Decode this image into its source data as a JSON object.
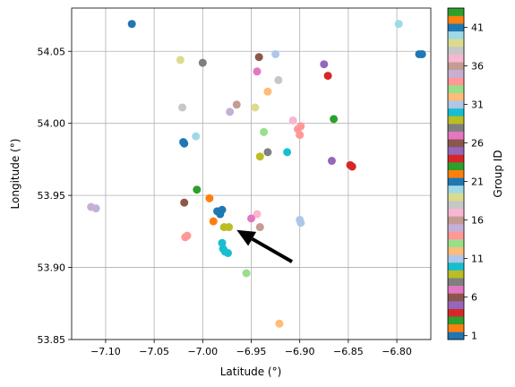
{
  "chart_data": {
    "type": "scatter",
    "title": "",
    "xlabel": "Latitude (°)",
    "ylabel": "Longitude (°)",
    "xlim": [
      -7.135,
      -6.765
    ],
    "ylim": [
      53.85,
      54.08
    ],
    "xticks": [
      -7.1,
      -7.05,
      -7.0,
      -6.95,
      -6.9,
      -6.85,
      -6.8
    ],
    "xtick_labels": [
      "−7.10",
      "−7.05",
      "−7.00",
      "−6.95",
      "−6.90",
      "−6.85",
      "−6.80"
    ],
    "yticks": [
      53.85,
      53.9,
      53.95,
      54.0,
      54.05
    ],
    "ytick_labels": [
      "53.85",
      "53.90",
      "53.95",
      "54.00",
      "54.05"
    ],
    "grid": true,
    "colorbar": {
      "label": "Group ID",
      "min": 0.5,
      "max": 43.5,
      "ticks": [
        1,
        6,
        11,
        16,
        21,
        26,
        31,
        36,
        41
      ],
      "tick_labels": [
        "1",
        "6",
        "11",
        "16",
        "21",
        "26",
        "31",
        "36",
        "41"
      ],
      "colors": [
        "#1f77b4",
        "#ff7f0e",
        "#2ca02c",
        "#d62728",
        "#9467bd",
        "#8c564b",
        "#e377c2",
        "#7f7f7f",
        "#bcbd22",
        "#17becf",
        "#aec7e8",
        "#ffbb78",
        "#98df8a",
        "#ff9896",
        "#c5b0d5",
        "#c49c94",
        "#f7b6d2",
        "#c7c7c7",
        "#dbdb8d",
        "#9edae5",
        "#1f77b4",
        "#ff7f0e",
        "#2ca02c",
        "#d62728",
        "#9467bd",
        "#8c564b",
        "#e377c2",
        "#7f7f7f",
        "#bcbd22",
        "#17becf",
        "#aec7e8",
        "#ffbb78",
        "#98df8a",
        "#ff9896",
        "#c5b0d5",
        "#c49c94",
        "#f7b6d2",
        "#c7c7c7",
        "#dbdb8d",
        "#9edae5",
        "#1f77b4",
        "#ff7f0e",
        "#2ca02c"
      ]
    },
    "arrow": {
      "from": [
        -6.908,
        53.904
      ],
      "to": [
        -6.965,
        53.926
      ],
      "color": "#000000"
    },
    "points": [
      {
        "x": -7.073,
        "y": 54.069,
        "c": "#1f77b4"
      },
      {
        "x": -6.798,
        "y": 54.069,
        "c": "#9edae5"
      },
      {
        "x": -6.777,
        "y": 54.048,
        "c": "#1f77b4"
      },
      {
        "x": -6.774,
        "y": 54.048,
        "c": "#1f77b4"
      },
      {
        "x": -7.023,
        "y": 54.044,
        "c": "#dbdb8d"
      },
      {
        "x": -7.0,
        "y": 54.042,
        "c": "#7f7f7f"
      },
      {
        "x": -6.942,
        "y": 54.046,
        "c": "#8c564b"
      },
      {
        "x": -6.925,
        "y": 54.048,
        "c": "#aec7e8"
      },
      {
        "x": -6.944,
        "y": 54.036,
        "c": "#e377c2"
      },
      {
        "x": -6.875,
        "y": 54.041,
        "c": "#9467bd"
      },
      {
        "x": -6.871,
        "y": 54.033,
        "c": "#d62728"
      },
      {
        "x": -6.922,
        "y": 54.03,
        "c": "#c7c7c7"
      },
      {
        "x": -6.933,
        "y": 54.022,
        "c": "#ffbb78"
      },
      {
        "x": -7.021,
        "y": 54.011,
        "c": "#c7c7c7"
      },
      {
        "x": -6.965,
        "y": 54.013,
        "c": "#c49c94"
      },
      {
        "x": -6.972,
        "y": 54.008,
        "c": "#c5b0d5"
      },
      {
        "x": -6.946,
        "y": 54.011,
        "c": "#dbdb8d"
      },
      {
        "x": -6.865,
        "y": 54.003,
        "c": "#2ca02c"
      },
      {
        "x": -6.907,
        "y": 54.002,
        "c": "#f7b6d2"
      },
      {
        "x": -6.899,
        "y": 53.998,
        "c": "#ff9896"
      },
      {
        "x": -6.902,
        "y": 53.996,
        "c": "#ff9896"
      },
      {
        "x": -6.9,
        "y": 53.992,
        "c": "#ff9896"
      },
      {
        "x": -6.937,
        "y": 53.994,
        "c": "#98df8a"
      },
      {
        "x": -7.007,
        "y": 53.991,
        "c": "#9edae5"
      },
      {
        "x": -7.02,
        "y": 53.987,
        "c": "#1f77b4"
      },
      {
        "x": -7.019,
        "y": 53.986,
        "c": "#1f77b4"
      },
      {
        "x": -6.933,
        "y": 53.98,
        "c": "#7f7f7f"
      },
      {
        "x": -6.913,
        "y": 53.98,
        "c": "#17becf"
      },
      {
        "x": -6.941,
        "y": 53.977,
        "c": "#bcbd22"
      },
      {
        "x": -6.867,
        "y": 53.974,
        "c": "#9467bd"
      },
      {
        "x": -6.848,
        "y": 53.971,
        "c": "#d62728"
      },
      {
        "x": -6.846,
        "y": 53.97,
        "c": "#d62728"
      },
      {
        "x": -7.006,
        "y": 53.954,
        "c": "#2ca02c"
      },
      {
        "x": -6.993,
        "y": 53.948,
        "c": "#ff7f0e"
      },
      {
        "x": -7.019,
        "y": 53.945,
        "c": "#8c564b"
      },
      {
        "x": -7.115,
        "y": 53.942,
        "c": "#c5b0d5"
      },
      {
        "x": -7.11,
        "y": 53.941,
        "c": "#c5b0d5"
      },
      {
        "x": -6.985,
        "y": 53.939,
        "c": "#1f77b4"
      },
      {
        "x": -6.98,
        "y": 53.94,
        "c": "#1f77b4"
      },
      {
        "x": -6.982,
        "y": 53.937,
        "c": "#1f77b4"
      },
      {
        "x": -6.944,
        "y": 53.937,
        "c": "#f7b6d2"
      },
      {
        "x": -6.95,
        "y": 53.934,
        "c": "#e377c2"
      },
      {
        "x": -6.9,
        "y": 53.933,
        "c": "#aec7e8"
      },
      {
        "x": -6.899,
        "y": 53.931,
        "c": "#aec7e8"
      },
      {
        "x": -6.989,
        "y": 53.932,
        "c": "#ff7f0e"
      },
      {
        "x": -6.941,
        "y": 53.928,
        "c": "#c49c94"
      },
      {
        "x": -6.978,
        "y": 53.928,
        "c": "#bcbd22"
      },
      {
        "x": -6.973,
        "y": 53.928,
        "c": "#bcbd22"
      },
      {
        "x": -7.018,
        "y": 53.921,
        "c": "#ff9896"
      },
      {
        "x": -7.016,
        "y": 53.922,
        "c": "#ff9896"
      },
      {
        "x": -6.98,
        "y": 53.917,
        "c": "#17becf"
      },
      {
        "x": -6.979,
        "y": 53.913,
        "c": "#17becf"
      },
      {
        "x": -6.977,
        "y": 53.911,
        "c": "#17becf"
      },
      {
        "x": -6.974,
        "y": 53.91,
        "c": "#17becf"
      },
      {
        "x": -6.955,
        "y": 53.896,
        "c": "#98df8a"
      },
      {
        "x": -6.921,
        "y": 53.861,
        "c": "#ffbb78"
      }
    ]
  }
}
